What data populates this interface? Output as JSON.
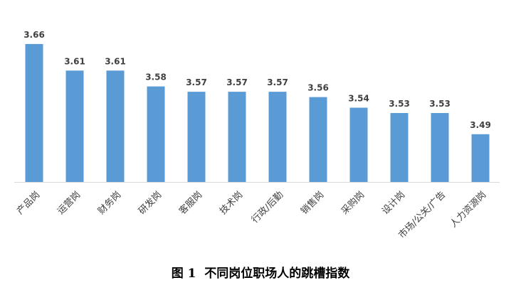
{
  "colors": {
    "bar": "#5B9BD5",
    "axis": "#D9D9D9",
    "label": "#404040"
  },
  "caption": "图 1  不同岗位职场人的跳槽指数",
  "chart_data": {
    "type": "bar",
    "categories": [
      "产品岗",
      "运营岗",
      "财务岗",
      "研发岗",
      "客服岗",
      "技术岗",
      "行政/后勤",
      "销售岗",
      "采购岗",
      "设计岗",
      "市场/公关/广告",
      "人力资源岗"
    ],
    "values": [
      3.66,
      3.61,
      3.61,
      3.58,
      3.57,
      3.57,
      3.57,
      3.56,
      3.54,
      3.53,
      3.53,
      3.49
    ],
    "data_labels": [
      "3.66",
      "3.61",
      "3.61",
      "3.58",
      "3.57",
      "3.57",
      "3.57",
      "3.56",
      "3.54",
      "3.53",
      "3.53",
      "3.49"
    ],
    "ylim": [
      3.4,
      3.68
    ],
    "grid": false,
    "legend": false
  }
}
